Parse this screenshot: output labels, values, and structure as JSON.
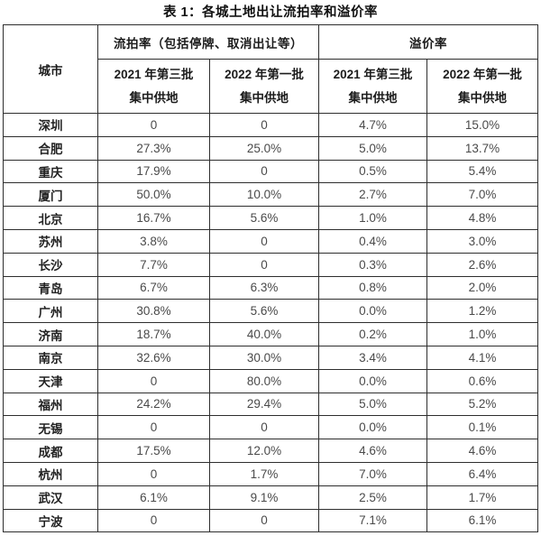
{
  "chart_data": {
    "type": "table",
    "title": "表 1：各城土地出让流拍率和溢价率",
    "corner_header": "城市",
    "col_groups": [
      {
        "label": "流拍率（包括停牌、取消出让等）",
        "subcols": [
          "2021 年第三批\n集中供地",
          "2022 年第一批\n集中供地"
        ]
      },
      {
        "label": "溢价率",
        "subcols": [
          "2021 年第三批\n集中供地",
          "2022 年第一批\n集中供地"
        ]
      }
    ],
    "rows": [
      {
        "city": "深圳",
        "values": [
          "0",
          "0",
          "4.7%",
          "15.0%"
        ]
      },
      {
        "city": "合肥",
        "values": [
          "27.3%",
          "25.0%",
          "5.0%",
          "13.7%"
        ]
      },
      {
        "city": "重庆",
        "values": [
          "17.9%",
          "0",
          "0.5%",
          "5.4%"
        ]
      },
      {
        "city": "厦门",
        "values": [
          "50.0%",
          "10.0%",
          "2.7%",
          "7.0%"
        ]
      },
      {
        "city": "北京",
        "values": [
          "16.7%",
          "5.6%",
          "1.0%",
          "4.8%"
        ]
      },
      {
        "city": "苏州",
        "values": [
          "3.8%",
          "0",
          "0.4%",
          "3.0%"
        ]
      },
      {
        "city": "长沙",
        "values": [
          "7.7%",
          "0",
          "0.3%",
          "2.6%"
        ]
      },
      {
        "city": "青岛",
        "values": [
          "6.7%",
          "6.3%",
          "0.8%",
          "2.0%"
        ]
      },
      {
        "city": "广州",
        "values": [
          "30.8%",
          "5.6%",
          "0.0%",
          "1.2%"
        ]
      },
      {
        "city": "济南",
        "values": [
          "18.7%",
          "40.0%",
          "0.2%",
          "1.0%"
        ]
      },
      {
        "city": "南京",
        "values": [
          "32.6%",
          "30.0%",
          "3.4%",
          "4.1%"
        ]
      },
      {
        "city": "天津",
        "values": [
          "0",
          "80.0%",
          "0.0%",
          "0.6%"
        ]
      },
      {
        "city": "福州",
        "values": [
          "24.2%",
          "29.4%",
          "5.0%",
          "5.2%"
        ]
      },
      {
        "city": "无锡",
        "values": [
          "0",
          "0",
          "0.0%",
          "0.1%"
        ]
      },
      {
        "city": "成都",
        "values": [
          "17.5%",
          "12.0%",
          "4.6%",
          "4.6%"
        ]
      },
      {
        "city": "杭州",
        "values": [
          "0",
          "1.7%",
          "7.0%",
          "6.4%"
        ]
      },
      {
        "city": "武汉",
        "values": [
          "6.1%",
          "9.1%",
          "2.5%",
          "1.7%"
        ]
      },
      {
        "city": "宁波",
        "values": [
          "0",
          "0",
          "7.1%",
          "6.1%"
        ]
      }
    ]
  },
  "colors": {
    "border": "#2e2e2e",
    "header_text": "#1c1c1c",
    "value_text": "#4a4a4a",
    "background": "#ffffff"
  }
}
